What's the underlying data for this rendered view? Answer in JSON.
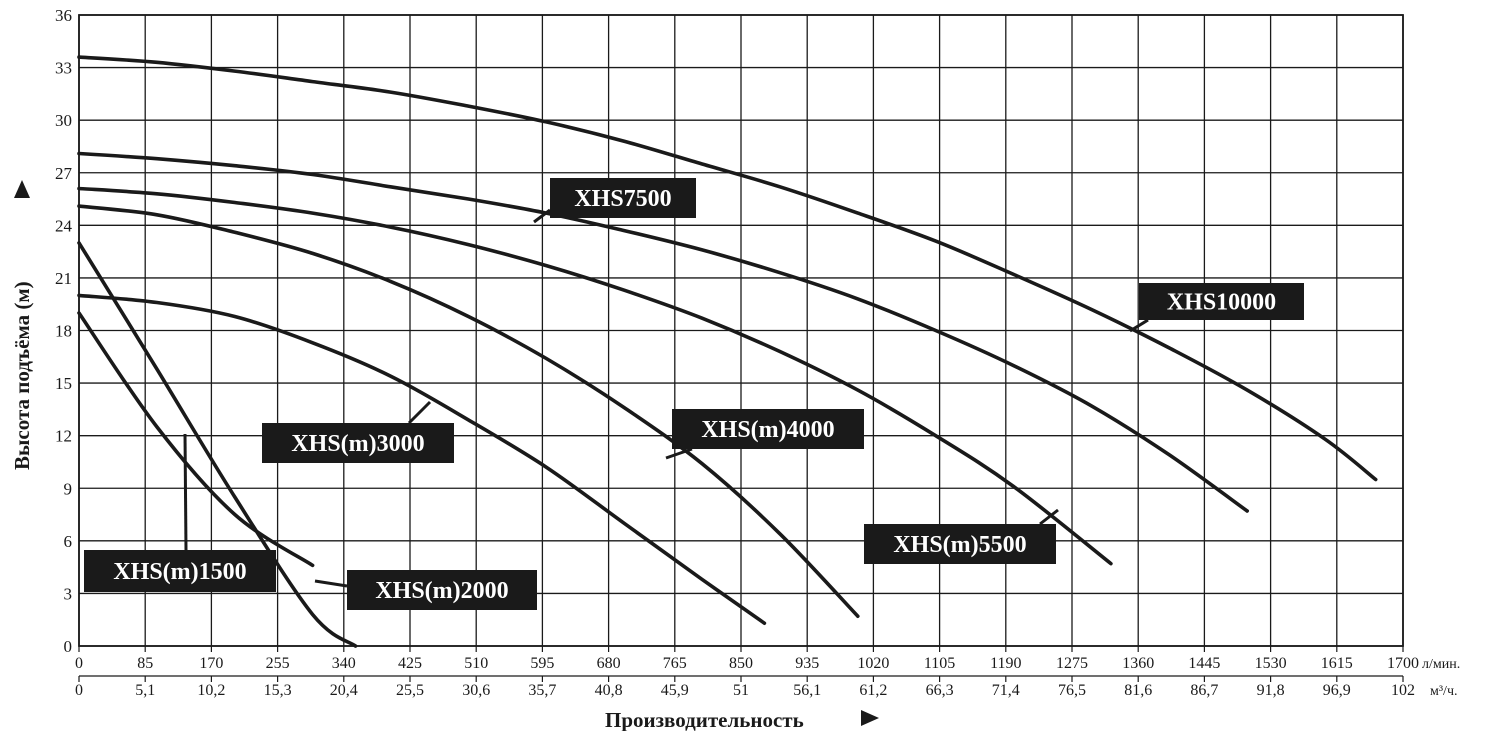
{
  "chart_data": {
    "type": "line",
    "title": "",
    "ylabel": "Высота подъёма (м)",
    "xlabel": "Производительность",
    "x_unit_primary": "л/мин.",
    "x_unit_secondary": "м³/ч.",
    "ylim": [
      0,
      36
    ],
    "xlim": [
      0,
      1700
    ],
    "grid": true,
    "y_ticks": [
      "0",
      "3",
      "6",
      "9",
      "12",
      "15",
      "18",
      "21",
      "24",
      "27",
      "30",
      "33",
      "36"
    ],
    "x_ticks_primary": [
      "0",
      "85",
      "170",
      "255",
      "340",
      "425",
      "510",
      "595",
      "680",
      "765",
      "850",
      "935",
      "1020",
      "1105",
      "1190",
      "1275",
      "1360",
      "1445",
      "1530",
      "1615",
      "1700"
    ],
    "x_ticks_secondary": [
      "0",
      "5,1",
      "10,2",
      "15,3",
      "20,4",
      "25,5",
      "30,6",
      "35,7",
      "40,8",
      "45,9",
      "51",
      "56,1",
      "61,2",
      "66,3",
      "71,4",
      "76,5",
      "81,6",
      "86,7",
      "91,8",
      "96,9",
      "102"
    ],
    "series": [
      {
        "name": "XHS(m)1500",
        "x": [
          0,
          100,
          200,
          300
        ],
        "y": [
          19,
          12.5,
          7.5,
          4.6
        ]
      },
      {
        "name": "XHS(m)2000",
        "x": [
          0,
          100,
          200,
          300,
          355
        ],
        "y": [
          23,
          15.8,
          8.5,
          1.8,
          0
        ]
      },
      {
        "name": "XHS(m)3000",
        "x": [
          0,
          100,
          200,
          300,
          400,
          500,
          600,
          700,
          800,
          880
        ],
        "y": [
          20,
          19.6,
          18.8,
          17.3,
          15.4,
          12.9,
          10.2,
          7.0,
          3.8,
          1.3
        ]
      },
      {
        "name": "XHS(m)4000",
        "x": [
          0,
          100,
          200,
          300,
          400,
          500,
          600,
          700,
          800,
          900,
          1000
        ],
        "y": [
          25.1,
          24.6,
          23.6,
          22.4,
          20.8,
          18.8,
          16.4,
          13.6,
          10.4,
          6.4,
          1.7
        ]
      },
      {
        "name": "XHS(m)5500",
        "x": [
          0,
          100,
          200,
          300,
          400,
          500,
          600,
          700,
          800,
          900,
          1000,
          1100,
          1200,
          1325
        ],
        "y": [
          26.1,
          25.8,
          25.3,
          24.7,
          23.9,
          22.9,
          21.7,
          20.3,
          18.7,
          16.8,
          14.6,
          12.0,
          9.1,
          4.7
        ]
      },
      {
        "name": "XHS7500",
        "x": [
          0,
          100,
          200,
          300,
          400,
          500,
          600,
          700,
          800,
          900,
          1000,
          1100,
          1200,
          1300,
          1400,
          1500
        ],
        "y": [
          28.1,
          27.8,
          27.4,
          26.9,
          26.2,
          25.5,
          24.7,
          23.7,
          22.6,
          21.3,
          19.8,
          18.0,
          16.0,
          13.7,
          10.9,
          7.7
        ]
      },
      {
        "name": "XHS10000",
        "x": [
          0,
          100,
          200,
          300,
          400,
          500,
          600,
          700,
          800,
          900,
          1000,
          1100,
          1200,
          1300,
          1400,
          1500,
          1600,
          1665
        ],
        "y": [
          33.6,
          33.3,
          32.8,
          32.2,
          31.6,
          30.8,
          29.9,
          28.8,
          27.5,
          26.2,
          24.7,
          23.1,
          21.2,
          19.2,
          17.0,
          14.6,
          11.8,
          9.5
        ]
      }
    ],
    "annotations": [
      {
        "text": "XHS(m)1500",
        "series": "XHS(m)1500"
      },
      {
        "text": "XHS(m)2000",
        "series": "XHS(m)2000"
      },
      {
        "text": "XHS(m)3000",
        "series": "XHS(m)3000"
      },
      {
        "text": "XHS(m)4000",
        "series": "XHS(m)4000"
      },
      {
        "text": "XHS(m)5500",
        "series": "XHS(m)5500"
      },
      {
        "text": "XHS7500",
        "series": "XHS7500"
      },
      {
        "text": "XHS10000",
        "series": "XHS10000"
      }
    ]
  }
}
